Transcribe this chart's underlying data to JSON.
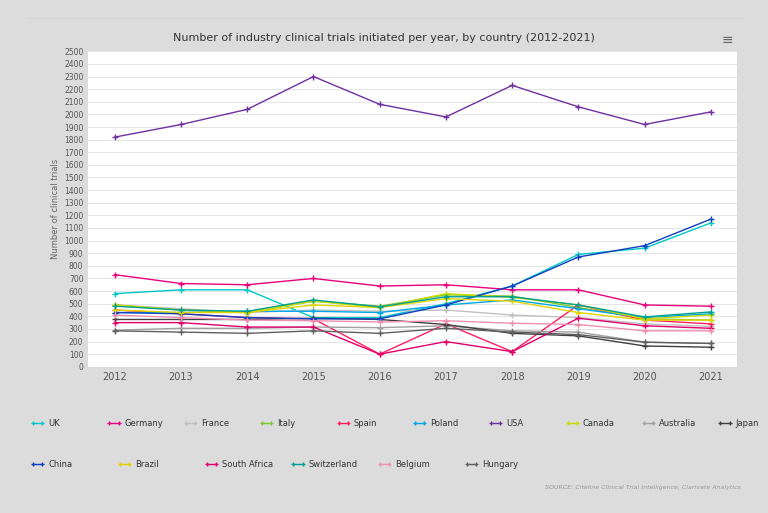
{
  "title": "Number of industry clinical trials initiated per year, by country (2012-2021)",
  "ylabel": "Number of clinical trials",
  "years": [
    2012,
    2013,
    2014,
    2015,
    2016,
    2017,
    2018,
    2019,
    2020,
    2021
  ],
  "series": {
    "UK": {
      "color": "#00c8c8",
      "values": [
        580,
        610,
        610,
        390,
        390,
        500,
        640,
        890,
        940,
        1140
      ]
    },
    "Germany": {
      "color": "#e8007c",
      "values": [
        730,
        660,
        650,
        700,
        640,
        650,
        610,
        610,
        490,
        480
      ]
    },
    "France": {
      "color": "#c0c0c0",
      "values": [
        490,
        460,
        430,
        450,
        440,
        450,
        410,
        390,
        340,
        320
      ]
    },
    "Italy": {
      "color": "#7ec832",
      "values": [
        490,
        450,
        430,
        520,
        480,
        570,
        560,
        470,
        380,
        370
      ]
    },
    "Spain": {
      "color": "#ff2060",
      "values": [
        450,
        420,
        390,
        380,
        100,
        340,
        120,
        490,
        370,
        340
      ]
    },
    "Poland": {
      "color": "#00a8e8",
      "values": [
        430,
        430,
        440,
        440,
        430,
        490,
        530,
        460,
        390,
        420
      ]
    },
    "USA": {
      "color": "#7030a0",
      "values": [
        1820,
        1920,
        2040,
        2300,
        2080,
        1980,
        2230,
        2060,
        1920,
        2020
      ]
    },
    "Canada": {
      "color": "#c8dc00",
      "values": [
        490,
        450,
        430,
        520,
        470,
        580,
        550,
        490,
        380,
        410
      ]
    },
    "Australia": {
      "color": "#a0a0a0",
      "values": [
        290,
        305,
        305,
        315,
        310,
        325,
        285,
        275,
        195,
        185
      ]
    },
    "Japan": {
      "color": "#404040",
      "values": [
        375,
        375,
        375,
        385,
        375,
        335,
        265,
        245,
        165,
        155
      ]
    },
    "China": {
      "color": "#1040c0",
      "values": [
        430,
        420,
        390,
        380,
        380,
        490,
        640,
        870,
        960,
        1170
      ]
    },
    "Brazil": {
      "color": "#e0d400",
      "values": [
        450,
        430,
        430,
        490,
        470,
        540,
        520,
        430,
        370,
        370
      ]
    },
    "South Africa": {
      "color": "#e0006c",
      "values": [
        350,
        350,
        315,
        315,
        100,
        200,
        120,
        385,
        325,
        305
      ]
    },
    "Switzerland": {
      "color": "#00a090",
      "values": [
        480,
        450,
        440,
        530,
        475,
        555,
        555,
        490,
        395,
        435
      ]
    },
    "Belgium": {
      "color": "#f090b0",
      "values": [
        410,
        390,
        370,
        365,
        355,
        365,
        345,
        335,
        285,
        285
      ]
    },
    "Hungary": {
      "color": "#606060",
      "values": [
        285,
        275,
        265,
        285,
        265,
        305,
        275,
        255,
        195,
        185
      ]
    }
  },
  "ylim": [
    0,
    2500
  ],
  "background_color": "#ffffff",
  "outer_bg_color": "#dcdcdc",
  "card_bg_color": "#ffffff",
  "grid_color": "#e0e0e0",
  "source_text": "SOURCE: Citeline Clinical Trial Intelligence, Clarivate Analytics",
  "menu_icon": "≡",
  "legend_row1": [
    "UK",
    "Germany",
    "France",
    "Italy",
    "Spain",
    "Poland",
    "USA",
    "Canada",
    "Australia",
    "Japan"
  ],
  "legend_row2": [
    "China",
    "Brazil",
    "South Africa",
    "Switzerland",
    "Belgium",
    "Hungary"
  ]
}
